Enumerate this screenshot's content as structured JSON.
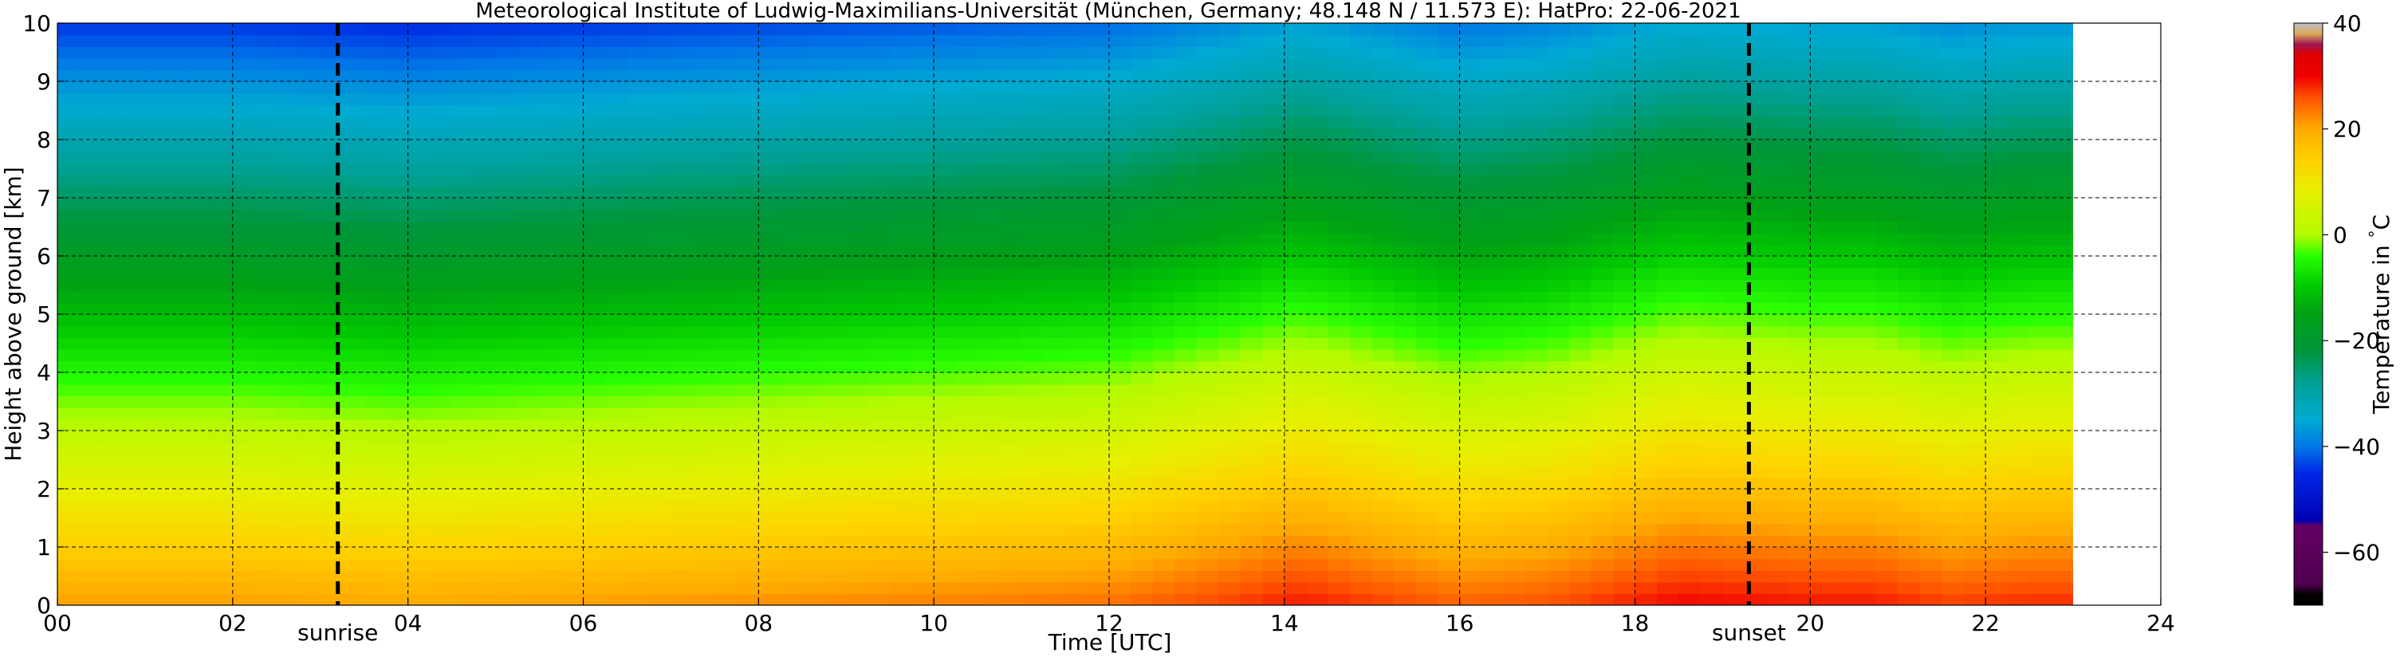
{
  "chart_data": {
    "type": "heatmap",
    "title": "Meteorological Institute of Ludwig-Maximilians-Universität (München, Germany; 48.148 N / 11.573 E):    HatPro: 22-06-2021",
    "xlabel": "Time [UTC]",
    "ylabel": "Height above ground [km]",
    "xlim": [
      0,
      24
    ],
    "ylim": [
      0,
      10
    ],
    "x_ticks": [
      "00",
      "02",
      "04",
      "06",
      "08",
      "10",
      "12",
      "14",
      "16",
      "18",
      "20",
      "22",
      "24"
    ],
    "y_ticks": [
      "0",
      "1",
      "2",
      "3",
      "4",
      "5",
      "6",
      "7",
      "8",
      "9",
      "10"
    ],
    "grid": true,
    "data_end_time": 23,
    "colorbar": {
      "label": "Temperature in $^\\circ$C",
      "range": [
        -70,
        40
      ],
      "ticks": [
        "40",
        "20",
        "0",
        "−20",
        "−40",
        "−60"
      ],
      "tick_values": [
        40,
        20,
        0,
        -20,
        -40,
        -60
      ]
    },
    "markers": [
      {
        "label": "sunrise",
        "time": 3.2
      },
      {
        "label": "sunset",
        "time": 19.3
      }
    ],
    "surface_temperature_by_hour": {
      "hours": [
        0,
        2,
        4,
        6,
        8,
        10,
        12,
        13.8,
        14.2,
        16,
        17,
        18.5,
        20,
        20.7,
        21.6,
        22.5
      ],
      "values": [
        21,
        21,
        20,
        21,
        22,
        23,
        24,
        28,
        29,
        25,
        26,
        30,
        29,
        29,
        27,
        28
      ]
    },
    "lapse_rate_c_per_km": -6.5
  }
}
